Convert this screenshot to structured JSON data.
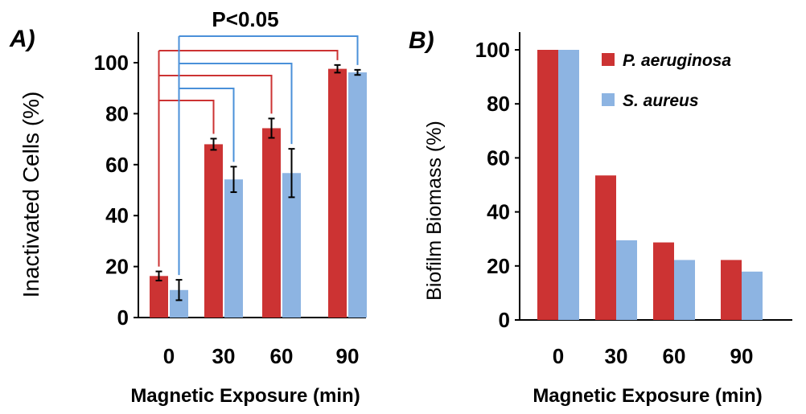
{
  "colors": {
    "p_aeruginosa": "#cc3333",
    "s_aureus": "#8db4e2",
    "red_bracket": "#cc3333",
    "blue_bracket": "#4a90d9",
    "axis": "#000000"
  },
  "chart_data": [
    {
      "panel_label": "A)",
      "type": "bar",
      "categories": [
        "0",
        "30",
        "60",
        "90"
      ],
      "series": [
        {
          "name": "P. aeruginosa",
          "values": [
            16.3,
            68.0,
            74.3,
            97.6
          ],
          "errors": [
            1.8,
            2.2,
            3.8,
            1.5
          ]
        },
        {
          "name": "S. aureus",
          "values": [
            10.8,
            54.2,
            56.7,
            96.2
          ],
          "errors": [
            4.0,
            5.0,
            9.5,
            1.0
          ]
        }
      ],
      "xlabel": "Magnetic Exposure (min)",
      "ylabel": "Inactivated Cells (%)",
      "ylim": [
        0,
        110
      ],
      "yticks": [
        "0",
        "20",
        "40",
        "60",
        "80",
        "100"
      ],
      "annotation": "P<0.05",
      "grid": false,
      "legend": "none"
    },
    {
      "panel_label": "B)",
      "type": "bar",
      "categories": [
        "0",
        "30",
        "60",
        "90"
      ],
      "series": [
        {
          "name": "P. aeruginosa",
          "values": [
            100,
            53.5,
            28.7,
            22.2
          ]
        },
        {
          "name": "S. aureus",
          "values": [
            100,
            29.5,
            22.2,
            17.9
          ]
        }
      ],
      "xlabel": "Magnetic Exposure (min)",
      "ylabel": "Biofilm Biomass (%)",
      "ylim": [
        0,
        100
      ],
      "yticks": [
        "0",
        "20",
        "40",
        "60",
        "80",
        "100"
      ],
      "grid": false,
      "legend": "top-right",
      "legend_entries": [
        "P. aeruginosa",
        "S. aureus"
      ]
    }
  ]
}
